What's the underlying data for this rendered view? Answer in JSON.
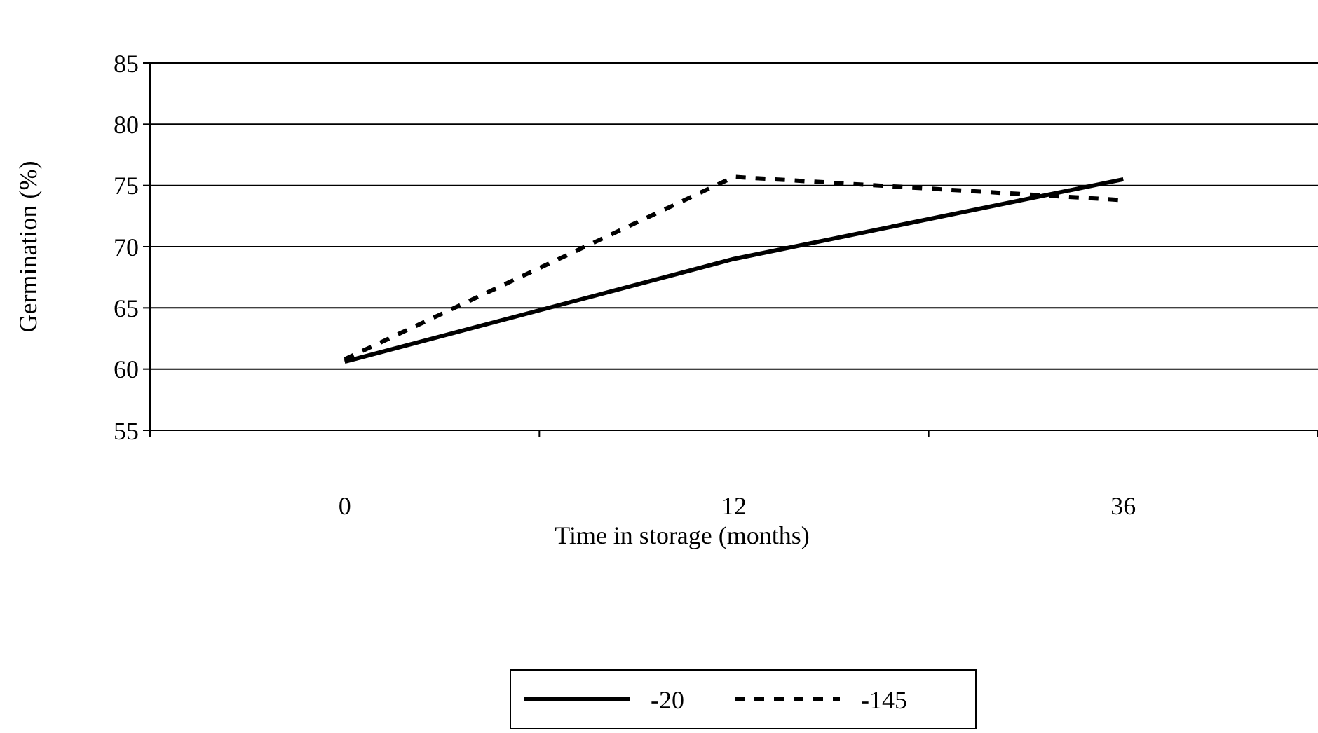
{
  "chart_data": {
    "type": "line",
    "xlabel": "Time in storage (months)",
    "ylabel": "Germination (%)",
    "categories": [
      "0",
      "12",
      "36"
    ],
    "series": [
      {
        "name": "-20",
        "color": "#000000",
        "values": [
          60.6,
          69,
          75.5
        ],
        "line_style": "solid"
      },
      {
        "name": "-145",
        "color": "#000000",
        "values": [
          60.8,
          75.7,
          73.8
        ],
        "line_style": "dashed"
      }
    ],
    "ylim": [
      55,
      85
    ],
    "yticks": [
      55,
      60,
      65,
      70,
      75,
      80,
      85
    ],
    "grid": "y",
    "legend": "bottom",
    "marker": "none"
  }
}
